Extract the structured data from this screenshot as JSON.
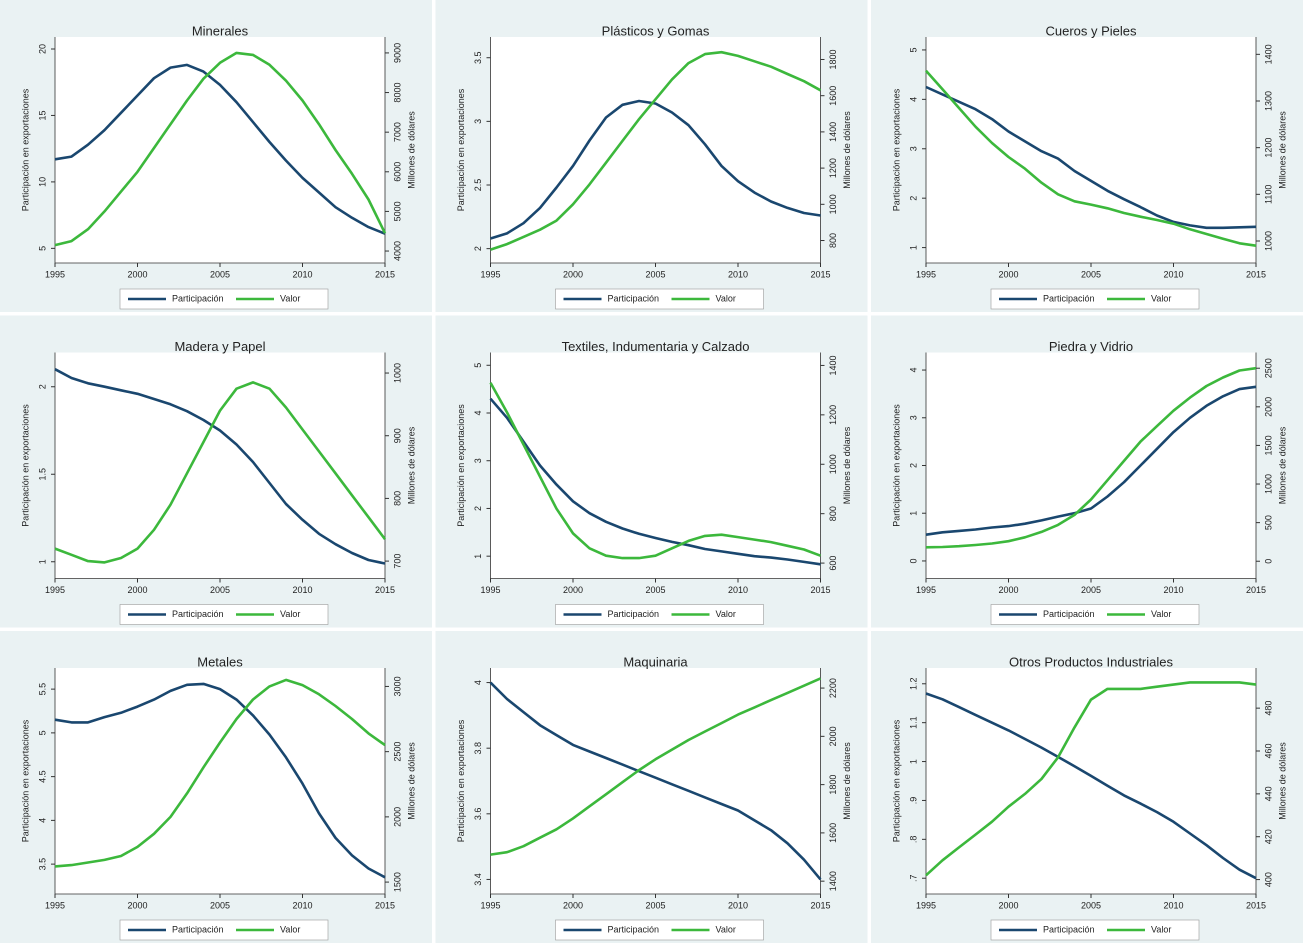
{
  "chart_data": [
    {
      "type": "line",
      "title": "Minerales",
      "ylabel": "Participación en exportaciones",
      "y2label": "Millones de dólares",
      "x": [
        1995,
        1996,
        1997,
        1998,
        1999,
        2000,
        2001,
        2002,
        2003,
        2004,
        2005,
        2006,
        2007,
        2008,
        2009,
        2010,
        2011,
        2012,
        2013,
        2014,
        2015
      ],
      "xlim": [
        1995,
        2015
      ],
      "xticks": [
        1995,
        2000,
        2005,
        2010,
        2015
      ],
      "ylim": [
        4.5,
        20.3
      ],
      "yticks": [
        5,
        10,
        15,
        20
      ],
      "y2lim": [
        3900,
        9200
      ],
      "y2ticks": [
        4000,
        5000,
        6000,
        7000,
        8000,
        9000
      ],
      "series": [
        {
          "name": "Participación",
          "color": "#1a476f",
          "values": [
            11.7,
            11.9,
            12.8,
            13.9,
            15.2,
            16.5,
            17.8,
            18.6,
            18.8,
            18.3,
            17.3,
            16.0,
            14.5,
            13.0,
            11.6,
            10.3,
            9.2,
            8.1,
            7.3,
            6.6,
            6.1
          ]
        },
        {
          "name": "Valor",
          "color": "#3cb83c",
          "axis": "y2",
          "values": [
            4150,
            4250,
            4550,
            5000,
            5500,
            6000,
            6600,
            7200,
            7800,
            8350,
            8750,
            9000,
            8950,
            8700,
            8300,
            7800,
            7200,
            6550,
            5950,
            5300,
            4450
          ]
        }
      ]
    },
    {
      "type": "line",
      "title": "Plásticos y Gomas",
      "ylabel": "Participación en exportaciones",
      "y2label": "Millones de dólares",
      "x": [
        1995,
        1996,
        1997,
        1998,
        1999,
        2000,
        2001,
        2002,
        2003,
        2004,
        2005,
        2006,
        2007,
        2008,
        2009,
        2010,
        2011,
        2012,
        2013,
        2014,
        2015
      ],
      "xlim": [
        1995,
        2015
      ],
      "xticks": [
        1995,
        2000,
        2005,
        2010,
        2015
      ],
      "ylim": [
        1.95,
        3.6
      ],
      "yticks": [
        2,
        2.5,
        3,
        3.5
      ],
      "y2lim": [
        720,
        1880
      ],
      "y2ticks": [
        800,
        1000,
        1200,
        1400,
        1600,
        1800
      ],
      "series": [
        {
          "name": "Participación",
          "color": "#1a476f",
          "values": [
            2.08,
            2.12,
            2.2,
            2.32,
            2.48,
            2.65,
            2.85,
            3.03,
            3.13,
            3.16,
            3.14,
            3.07,
            2.97,
            2.82,
            2.65,
            2.53,
            2.44,
            2.37,
            2.32,
            2.28,
            2.26
          ]
        },
        {
          "name": "Valor",
          "color": "#3cb83c",
          "axis": "y2",
          "values": [
            750,
            780,
            820,
            860,
            910,
            1000,
            1110,
            1230,
            1350,
            1470,
            1580,
            1690,
            1780,
            1830,
            1840,
            1820,
            1790,
            1760,
            1720,
            1680,
            1630
          ]
        }
      ]
    },
    {
      "type": "line",
      "title": "Cueros y Pieles",
      "ylabel": "Participación en exportaciones",
      "y2label": "Millones de dólares",
      "x": [
        1995,
        1996,
        1997,
        1998,
        1999,
        2000,
        2001,
        2002,
        2003,
        2004,
        2005,
        2006,
        2007,
        2008,
        2009,
        2010,
        2011,
        2012,
        2013,
        2014,
        2015
      ],
      "xlim": [
        1995,
        2015
      ],
      "xticks": [
        1995,
        2000,
        2005,
        2010,
        2015
      ],
      "ylim": [
        0.85,
        5.1
      ],
      "yticks": [
        1,
        2,
        3,
        4,
        5
      ],
      "y2lim": [
        970,
        1420
      ],
      "y2ticks": [
        1000,
        1100,
        1200,
        1300,
        1400
      ],
      "series": [
        {
          "name": "Participación",
          "color": "#1a476f",
          "values": [
            4.25,
            4.1,
            3.95,
            3.8,
            3.6,
            3.35,
            3.15,
            2.95,
            2.8,
            2.55,
            2.35,
            2.15,
            1.98,
            1.82,
            1.65,
            1.52,
            1.45,
            1.4,
            1.4,
            1.41,
            1.42
          ]
        },
        {
          "name": "Valor",
          "color": "#3cb83c",
          "axis": "y2",
          "values": [
            1365,
            1325,
            1285,
            1245,
            1210,
            1180,
            1155,
            1125,
            1100,
            1085,
            1078,
            1070,
            1060,
            1052,
            1045,
            1037,
            1025,
            1015,
            1005,
            995,
            990
          ]
        }
      ]
    },
    {
      "type": "line",
      "title": "Madera y Papel",
      "ylabel": "Participación en exportaciones",
      "y2label": "Millones de dólares",
      "x": [
        1995,
        1996,
        1997,
        1998,
        1999,
        2000,
        2001,
        2002,
        2003,
        2004,
        2005,
        2006,
        2007,
        2008,
        2009,
        2010,
        2011,
        2012,
        2013,
        2014,
        2015
      ],
      "xlim": [
        1995,
        2015
      ],
      "xticks": [
        1995,
        2000,
        2005,
        2010,
        2015
      ],
      "ylim": [
        0.95,
        2.15
      ],
      "yticks": [
        1,
        1.5,
        2
      ],
      "y2lim": [
        685,
        1020
      ],
      "y2ticks": [
        700,
        800,
        900,
        1000
      ],
      "series": [
        {
          "name": "Participación",
          "color": "#1a476f",
          "values": [
            2.1,
            2.05,
            2.02,
            2.0,
            1.98,
            1.96,
            1.93,
            1.9,
            1.86,
            1.81,
            1.75,
            1.67,
            1.57,
            1.45,
            1.33,
            1.24,
            1.16,
            1.1,
            1.05,
            1.01,
            0.99
          ]
        },
        {
          "name": "Valor",
          "color": "#3cb83c",
          "axis": "y2",
          "values": [
            720,
            710,
            700,
            698,
            705,
            720,
            750,
            790,
            840,
            890,
            940,
            975,
            985,
            975,
            945,
            910,
            875,
            840,
            805,
            770,
            735
          ]
        }
      ]
    },
    {
      "type": "line",
      "title": "Textiles, Indumentaria y Calzado",
      "ylabel": "Participación en exportaciones",
      "y2label": "Millones de dólares",
      "x": [
        1995,
        1996,
        1997,
        1998,
        1999,
        2000,
        2001,
        2002,
        2003,
        2004,
        2005,
        2006,
        2007,
        2008,
        2009,
        2010,
        2011,
        2012,
        2013,
        2014,
        2015
      ],
      "xlim": [
        1995,
        2015
      ],
      "xticks": [
        1995,
        2000,
        2005,
        2010,
        2015
      ],
      "ylim": [
        0.7,
        5.1
      ],
      "yticks": [
        1,
        2,
        3,
        4,
        5
      ],
      "y2lim": [
        570,
        1420
      ],
      "y2ticks": [
        600,
        800,
        1000,
        1200,
        1400
      ],
      "series": [
        {
          "name": "Participación",
          "color": "#1a476f",
          "values": [
            4.3,
            3.9,
            3.4,
            2.9,
            2.5,
            2.15,
            1.9,
            1.72,
            1.58,
            1.47,
            1.38,
            1.3,
            1.23,
            1.15,
            1.1,
            1.05,
            1.0,
            0.97,
            0.93,
            0.88,
            0.83
          ]
        },
        {
          "name": "Valor",
          "color": "#3cb83c",
          "axis": "y2",
          "values": [
            1330,
            1210,
            1080,
            950,
            820,
            720,
            660,
            630,
            620,
            620,
            630,
            660,
            690,
            710,
            715,
            705,
            695,
            685,
            670,
            655,
            630
          ]
        }
      ]
    },
    {
      "type": "line",
      "title": "Piedra y Vidrio",
      "ylabel": "Participación en exportaciones",
      "y2label": "Millones de dólares",
      "x": [
        1995,
        1996,
        1997,
        1998,
        1999,
        2000,
        2001,
        2002,
        2003,
        2004,
        2005,
        2006,
        2007,
        2008,
        2009,
        2010,
        2011,
        2012,
        2013,
        2014,
        2015
      ],
      "xlim": [
        1995,
        2015
      ],
      "xticks": [
        1995,
        2000,
        2005,
        2010,
        2015
      ],
      "ylim": [
        -0.2,
        4.2
      ],
      "yticks": [
        0,
        1,
        2,
        3,
        4
      ],
      "y2lim": [
        -120,
        2600
      ],
      "y2ticks": [
        0,
        500,
        1000,
        1500,
        2000,
        2500
      ],
      "series": [
        {
          "name": "Participación",
          "color": "#1a476f",
          "values": [
            0.55,
            0.6,
            0.63,
            0.66,
            0.7,
            0.73,
            0.78,
            0.85,
            0.93,
            1.0,
            1.1,
            1.35,
            1.65,
            2.0,
            2.35,
            2.7,
            3.0,
            3.25,
            3.45,
            3.6,
            3.65
          ]
        },
        {
          "name": "Valor",
          "color": "#3cb83c",
          "axis": "y2",
          "values": [
            180,
            185,
            195,
            210,
            230,
            260,
            310,
            380,
            470,
            600,
            800,
            1050,
            1300,
            1550,
            1750,
            1950,
            2120,
            2270,
            2380,
            2470,
            2500
          ]
        }
      ]
    },
    {
      "type": "line",
      "title": "Metales",
      "ylabel": "Participación en exportaciones",
      "y2label": "Millones de dólares",
      "x": [
        1995,
        1996,
        1997,
        1998,
        1999,
        2000,
        2001,
        2002,
        2003,
        2004,
        2005,
        2006,
        2007,
        2008,
        2009,
        2010,
        2011,
        2012,
        2013,
        2014,
        2015
      ],
      "xlim": [
        1995,
        2015
      ],
      "xticks": [
        1995,
        2000,
        2005,
        2010,
        2015
      ],
      "ylim": [
        3.25,
        5.65
      ],
      "yticks": [
        3.5,
        4,
        4.5,
        5,
        5.5
      ],
      "y2lim": [
        1470,
        3080
      ],
      "y2ticks": [
        1500,
        2000,
        2500,
        3000
      ],
      "series": [
        {
          "name": "Participación",
          "color": "#1a476f",
          "values": [
            5.15,
            5.12,
            5.12,
            5.18,
            5.23,
            5.3,
            5.38,
            5.48,
            5.55,
            5.56,
            5.5,
            5.38,
            5.2,
            4.98,
            4.72,
            4.42,
            4.08,
            3.8,
            3.6,
            3.45,
            3.35
          ]
        },
        {
          "name": "Valor",
          "color": "#3cb83c",
          "axis": "y2",
          "values": [
            1620,
            1630,
            1650,
            1670,
            1700,
            1770,
            1870,
            2000,
            2180,
            2380,
            2570,
            2750,
            2900,
            3000,
            3050,
            3010,
            2940,
            2850,
            2750,
            2640,
            2550
          ]
        }
      ]
    },
    {
      "type": "line",
      "title": "Maquinaria",
      "ylabel": "Participación en exportaciones",
      "y2label": "Millones de dólares",
      "x": [
        1995,
        1996,
        1997,
        1998,
        1999,
        2000,
        2001,
        2002,
        2003,
        2004,
        2005,
        2006,
        2007,
        2008,
        2009,
        2010,
        2011,
        2012,
        2013,
        2014,
        2015
      ],
      "xlim": [
        1995,
        2015
      ],
      "xticks": [
        1995,
        2000,
        2005,
        2010,
        2015
      ],
      "ylim": [
        3.38,
        4.02
      ],
      "yticks": [
        3.4,
        3.6,
        3.8,
        4
      ],
      "y2lim": [
        1380,
        2250
      ],
      "y2ticks": [
        1400,
        1600,
        1800,
        2000,
        2200
      ],
      "series": [
        {
          "name": "Participación",
          "color": "#1a476f",
          "values": [
            4.0,
            3.95,
            3.91,
            3.87,
            3.84,
            3.81,
            3.79,
            3.77,
            3.75,
            3.73,
            3.71,
            3.69,
            3.67,
            3.65,
            3.63,
            3.61,
            3.58,
            3.55,
            3.51,
            3.46,
            3.4
          ]
        },
        {
          "name": "Valor",
          "color": "#3cb83c",
          "axis": "y2",
          "values": [
            1510,
            1520,
            1545,
            1580,
            1615,
            1660,
            1710,
            1760,
            1810,
            1860,
            1905,
            1945,
            1985,
            2020,
            2055,
            2090,
            2120,
            2150,
            2180,
            2210,
            2240
          ]
        }
      ]
    },
    {
      "type": "line",
      "title": "Otros Productos Industriales",
      "ylabel": "Participación en exportaciones",
      "y2label": "Millones de dólares",
      "x": [
        1995,
        1996,
        1997,
        1998,
        1999,
        2000,
        2001,
        2002,
        2003,
        2004,
        2005,
        2006,
        2007,
        2008,
        2009,
        2010,
        2011,
        2012,
        2013,
        2014,
        2015
      ],
      "xlim": [
        1995,
        2015
      ],
      "xticks": [
        1995,
        2000,
        2005,
        2010,
        2015
      ],
      "ylim": [
        0.68,
        1.22
      ],
      "yticks": [
        {
          "value": 0.7,
          "label": ".7"
        },
        {
          "value": 0.8,
          "label": ".8"
        },
        {
          "value": 0.9,
          "label": ".9"
        },
        1,
        1.1,
        1.2
      ],
      "y2lim": [
        397,
        495
      ],
      "y2ticks": [
        400,
        420,
        440,
        460,
        480
      ],
      "series": [
        {
          "name": "Participación",
          "color": "#1a476f",
          "values": [
            1.175,
            1.16,
            1.14,
            1.12,
            1.1,
            1.08,
            1.058,
            1.036,
            1.012,
            0.988,
            0.963,
            0.938,
            0.913,
            0.892,
            0.87,
            0.845,
            0.815,
            0.785,
            0.752,
            0.722,
            0.7
          ]
        },
        {
          "name": "Valor",
          "color": "#3cb83c",
          "axis": "y2",
          "values": [
            402,
            409,
            415,
            421,
            427,
            434,
            440,
            447,
            457,
            471,
            484,
            489,
            489,
            489,
            490,
            491,
            492,
            492,
            492,
            492,
            491
          ]
        }
      ]
    }
  ]
}
